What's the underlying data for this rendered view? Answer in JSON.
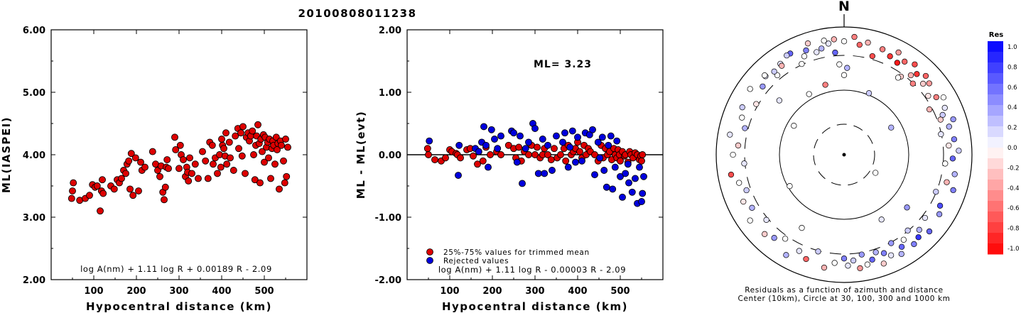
{
  "title": "20100808011238",
  "panel1": {
    "ylabel": "ML(IASPEI)",
    "xlabel": "Hypocentral distance (km)",
    "yticks": [
      "2.00",
      "3.00",
      "4.00",
      "5.00",
      "6.00"
    ],
    "xticks": [
      "100",
      "200",
      "300",
      "400",
      "500"
    ],
    "formula": "log A(nm) + 1.11 log R + 0.00189 R - 2.09"
  },
  "panel2": {
    "ylabel": "ML - ML(evt)",
    "xlabel": "Hypocentral distance (km)",
    "yticks": [
      "-2.00",
      "-1.00",
      "0.00",
      "1.00",
      "2.00"
    ],
    "xticks": [
      "100",
      "200",
      "300",
      "400",
      "500"
    ],
    "ml_text": "ML= 3.23",
    "legend": [
      "25%-75% values for trimmed mean",
      "Rejected values"
    ],
    "formula": "log A(nm) + 1.11 log R - 0.00003 R - 2.09"
  },
  "panel3": {
    "north": "N",
    "caption1": "Residuals as a function of azimuth and distance",
    "caption2": "Center (10km), Circle at 30, 100, 300 and 1000 km",
    "colorbar_title": "Res",
    "colorbar_ticks": [
      "1.0",
      "0.8",
      "0.6",
      "0.4",
      "0.2",
      "0.0",
      "-0.2",
      "-0.4",
      "-0.6",
      "-0.8",
      "-1.0"
    ]
  },
  "colors": {
    "accepted": "#dd0000",
    "rejected": "#0000dd"
  },
  "chart_data": [
    {
      "type": "scatter",
      "title": "20100808011238",
      "xlabel": "Hypocentral distance (km)",
      "ylabel": "ML(IASPEI)",
      "xlim": [
        0,
        600
      ],
      "ylim": [
        2,
        6
      ],
      "series": [
        {
          "x": [
            48,
            50,
            52,
            67,
            80,
            90,
            97,
            103,
            108,
            115,
            118,
            120,
            122,
            140,
            148,
            155,
            160,
            165,
            170,
            175,
            178,
            182,
            185,
            188,
            192,
            198,
            205,
            210,
            213,
            220,
            238,
            245,
            250,
            255,
            258,
            262,
            265,
            268,
            270,
            272,
            275,
            290,
            292,
            300,
            303,
            305,
            310,
            315,
            318,
            320,
            322,
            325,
            330,
            338,
            345,
            355,
            362,
            368,
            372,
            378,
            380,
            385,
            390,
            395,
            398,
            400,
            402,
            405,
            408,
            410,
            412,
            418,
            420,
            428,
            432,
            438,
            440,
            445,
            448,
            450,
            455,
            458,
            462,
            465,
            468,
            472,
            475,
            478,
            480,
            482,
            485,
            488,
            490,
            492,
            495,
            498,
            500,
            502,
            505,
            508,
            510,
            512,
            515,
            518,
            520,
            522,
            525,
            528,
            530,
            532,
            535,
            538,
            540,
            545,
            548,
            550,
            552,
            555
          ],
          "y": [
            3.3,
            3.42,
            3.55,
            3.27,
            3.3,
            3.35,
            3.52,
            3.48,
            3.5,
            3.1,
            3.42,
            3.6,
            3.38,
            3.5,
            3.45,
            3.6,
            3.55,
            3.62,
            3.75,
            3.7,
            3.85,
            3.9,
            3.45,
            4.02,
            3.35,
            3.95,
            3.42,
            3.88,
            3.75,
            3.8,
            4.05,
            3.85,
            3.75,
            3.65,
            3.82,
            3.4,
            3.28,
            3.48,
            3.8,
            3.92,
            3.78,
            4.28,
            4.08,
            3.78,
            4.15,
            4.0,
            3.92,
            3.65,
            3.8,
            3.72,
            3.58,
            3.95,
            3.7,
            3.85,
            3.62,
            4.05,
            3.9,
            3.62,
            4.2,
            4.15,
            3.85,
            3.95,
            3.7,
            4.0,
            3.8,
            4.25,
            4.15,
            4.1,
            3.98,
            4.35,
            3.85,
            4.2,
            3.95,
            3.75,
            4.3,
            4.42,
            4.1,
            4.35,
            3.98,
            4.45,
            3.7,
            4.28,
            4.35,
            4.22,
            4.3,
            4.38,
            4.0,
            3.6,
            4.15,
            4.3,
            4.48,
            4.18,
            3.55,
            4.25,
            4.05,
            4.32,
            3.88,
            4.28,
            4.12,
            4.2,
            3.95,
            4.25,
            3.62,
            4.1,
            4.22,
            4.15,
            3.85,
            4.28,
            4.08,
            4.18,
            3.45,
            4.22,
            4.15,
            3.9,
            3.55,
            4.25,
            3.65,
            4.12
          ]
        }
      ]
    },
    {
      "type": "scatter",
      "xlabel": "Hypocentral distance (km)",
      "ylabel": "ML - ML(evt)",
      "xlim": [
        0,
        600
      ],
      "ylim": [
        -2,
        2
      ],
      "annotation": "ML= 3.23",
      "series": [
        {
          "name": "25%-75% values for trimmed mean",
          "x": [
            48,
            50,
            65,
            80,
            90,
            100,
            105,
            115,
            118,
            125,
            140,
            148,
            155,
            165,
            168,
            178,
            185,
            195,
            210,
            220,
            238,
            250,
            255,
            262,
            268,
            275,
            285,
            292,
            300,
            305,
            312,
            318,
            322,
            330,
            338,
            345,
            352,
            360,
            368,
            372,
            378,
            385,
            390,
            395,
            400,
            405,
            410,
            415,
            420,
            425,
            430,
            440,
            448,
            455,
            460,
            465,
            470,
            475,
            480,
            485,
            488,
            492,
            495,
            498,
            500,
            505,
            510,
            512,
            518,
            522,
            525,
            530,
            535,
            540,
            545,
            548,
            550,
            552
          ],
          "y": [
            0.1,
            0.0,
            -0.08,
            -0.1,
            -0.05,
            0.08,
            0.05,
            0.02,
            0.0,
            -0.05,
            0.08,
            0.1,
            -0.02,
            -0.15,
            0.05,
            -0.1,
            0.12,
            0.0,
            0.05,
            0.0,
            0.15,
            0.1,
            -0.05,
            0.12,
            -0.1,
            0.05,
            0.0,
            0.15,
            0.0,
            0.12,
            -0.05,
            0.0,
            0.1,
            0.0,
            -0.08,
            0.1,
            -0.05,
            0.0,
            0.1,
            -0.1,
            0.15,
            0.0,
            0.05,
            0.1,
            0.2,
            0.05,
            -0.05,
            0.15,
            0.0,
            0.1,
            0.05,
            0.0,
            -0.1,
            0.15,
            -0.05,
            0.1,
            0.0,
            0.05,
            -0.08,
            0.1,
            0.0,
            -0.05,
            0.08,
            0.0,
            -0.1,
            0.05,
            -0.02,
            0.0,
            -0.12,
            0.05,
            0.0,
            -0.05,
            0.03,
            0.0,
            -0.08,
            -0.02,
            -0.1,
            0.0
          ]
        },
        {
          "name": "Rejected values",
          "x": [
            52,
            120,
            122,
            160,
            168,
            175,
            180,
            185,
            190,
            198,
            205,
            212,
            220,
            245,
            250,
            258,
            265,
            270,
            278,
            285,
            295,
            300,
            308,
            318,
            322,
            330,
            340,
            350,
            365,
            370,
            378,
            382,
            388,
            395,
            400,
            410,
            418,
            428,
            435,
            440,
            448,
            452,
            458,
            462,
            468,
            472,
            478,
            482,
            488,
            492,
            500,
            505,
            512,
            518,
            520,
            528,
            535,
            540,
            545,
            550,
            552,
            555
          ],
          "y": [
            0.22,
            -0.33,
            0.15,
            0.1,
            0.05,
            0.2,
            0.45,
            0.15,
            -0.2,
            0.4,
            0.25,
            0.1,
            0.3,
            0.38,
            0.35,
            -0.12,
            0.3,
            -0.46,
            0.1,
            0.2,
            0.5,
            0.42,
            -0.3,
            0.25,
            -0.3,
            0.15,
            -0.25,
            0.3,
            0.2,
            0.35,
            -0.2,
            0.12,
            0.38,
            -0.12,
            0.28,
            -0.1,
            0.35,
            0.32,
            0.4,
            -0.32,
            0.2,
            -0.05,
            0.28,
            -0.25,
            -0.52,
            0.15,
            0.3,
            -0.55,
            -0.2,
            0.22,
            -0.35,
            -0.68,
            -0.3,
            -0.15,
            -0.45,
            -0.6,
            -0.38,
            -0.78,
            -0.2,
            -0.75,
            -0.62,
            -0.35
          ]
        }
      ]
    },
    {
      "type": "scatter",
      "title": "",
      "xlabel": "",
      "ylabel": "",
      "description_polar": true,
      "colorbar": {
        "title": "Res",
        "range": [
          -1.0,
          1.0
        ]
      },
      "series": [
        {
          "azimuth_deg": [
            -35,
            -28,
            -22,
            -18,
            -12,
            -8,
            -5,
            0,
            5,
            8,
            12,
            16,
            20,
            25,
            28,
            30,
            33,
            36,
            38,
            40,
            42,
            44,
            46,
            48,
            50,
            55,
            58,
            60,
            62,
            65,
            68,
            70,
            72,
            75,
            78,
            82,
            85,
            88,
            92,
            95,
            100,
            105,
            108,
            112,
            118,
            122,
            128,
            132,
            135,
            138,
            140,
            142,
            145,
            148,
            150,
            152,
            155,
            158,
            160,
            162,
            165,
            168,
            170,
            172,
            175,
            178,
            180,
            185,
            190,
            195,
            200,
            205,
            210,
            215,
            220,
            225,
            230,
            235,
            240,
            245,
            250,
            255,
            260,
            265,
            270,
            275,
            280,
            285,
            290,
            295,
            300,
            305,
            310,
            315,
            320,
            325,
            330,
            335,
            340,
            345,
            350,
            355,
            -40,
            -45,
            -50,
            -15,
            -3,
            2,
            22,
            35,
            130,
            150,
            210,
            330,
            0,
            60,
            120,
            240,
            300
          ],
          "distance_frac": [
            0.92,
            0.95,
            0.88,
            0.97,
            0.9,
            0.93,
            0.96,
            0.94,
            0.98,
            0.92,
            0.95,
            0.85,
            0.93,
            0.9,
            0.96,
            0.88,
            0.92,
            0.8,
            0.95,
            0.86,
            0.9,
            0.82,
            0.94,
            0.88,
            0.92,
            0.85,
            0.9,
            0.95,
            0.8,
            0.92,
            0.88,
            0.85,
            0.95,
            0.9,
            0.82,
            0.92,
            0.87,
            0.95,
            0.9,
            0.84,
            0.93,
            0.88,
            0.95,
            0.82,
            0.9,
            0.93,
            0.85,
            0.95,
            0.88,
            0.92,
            0.82,
            0.94,
            0.86,
            0.9,
            0.95,
            0.83,
            0.92,
            0.88,
            0.96,
            0.85,
            0.9,
            0.93,
            0.84,
            0.95,
            0.88,
            0.92,
            0.86,
            0.9,
            0.95,
            0.83,
            0.92,
            0.88,
            0.96,
            0.85,
            0.9,
            0.93,
            0.84,
            0.95,
            0.88,
            0.92,
            0.86,
            0.9,
            0.95,
            0.83,
            0.92,
            0.88,
            0.96,
            0.85,
            0.9,
            0.93,
            0.84,
            0.95,
            0.88,
            0.92,
            0.86,
            0.9,
            0.95,
            0.83,
            0.92,
            0.88,
            0.96,
            0.85,
            0.9,
            0.93,
            0.7,
            0.6,
            0.75,
            0.72,
            0.55,
            0.78,
            0.68,
            0.62,
            0.7,
            0.58,
            0.66,
            0.45,
            0.3,
            0.52,
            0.48
          ],
          "residual": [
            0.1,
            0.6,
            0.0,
            -0.2,
            0.3,
            0.1,
            -0.3,
            0.0,
            -0.5,
            -0.6,
            -0.3,
            -0.7,
            -0.5,
            -0.8,
            -0.4,
            -0.9,
            -0.6,
            -0.2,
            -0.7,
            -0.3,
            -0.8,
            -0.5,
            -0.6,
            -0.2,
            -0.4,
            -0.1,
            -0.5,
            0.0,
            -0.3,
            0.1,
            0.2,
            -0.2,
            0.4,
            0.3,
            0.1,
            0.5,
            -0.1,
            0.2,
            0.6,
            0.0,
            0.3,
            -0.3,
            0.5,
            0.2,
            0.7,
            0.4,
            0.1,
            0.6,
            0.3,
            0.8,
            0.2,
            0.5,
            0.0,
            0.6,
            0.3,
            0.4,
            0.1,
            0.5,
            -0.2,
            0.3,
            0.6,
            0.0,
            0.4,
            -0.4,
            0.2,
            0.1,
            0.5,
            0.0,
            -0.3,
            0.2,
            -0.6,
            0.1,
            0.3,
            0.0,
            0.4,
            -0.2,
            0.1,
            0.0,
            0.3,
            -0.1,
            0.2,
            0.0,
            -0.7,
            0.1,
            0.0,
            -0.2,
            0.1,
            0.3,
            0.0,
            0.2,
            -0.1,
            0.0,
            0.4,
            0.1,
            0.0,
            -0.3,
            0.2,
            0.0,
            0.5,
            0.1,
            0.0,
            0.6,
            0.2,
            0.0,
            0.1,
            -0.5,
            0.0,
            0.3,
            0.2,
            0.0,
            0.4,
            0.1,
            0.0,
            0.0,
            0.0,
            0.3,
            0.0,
            0.0,
            0.0
          ]
        }
      ]
    }
  ]
}
